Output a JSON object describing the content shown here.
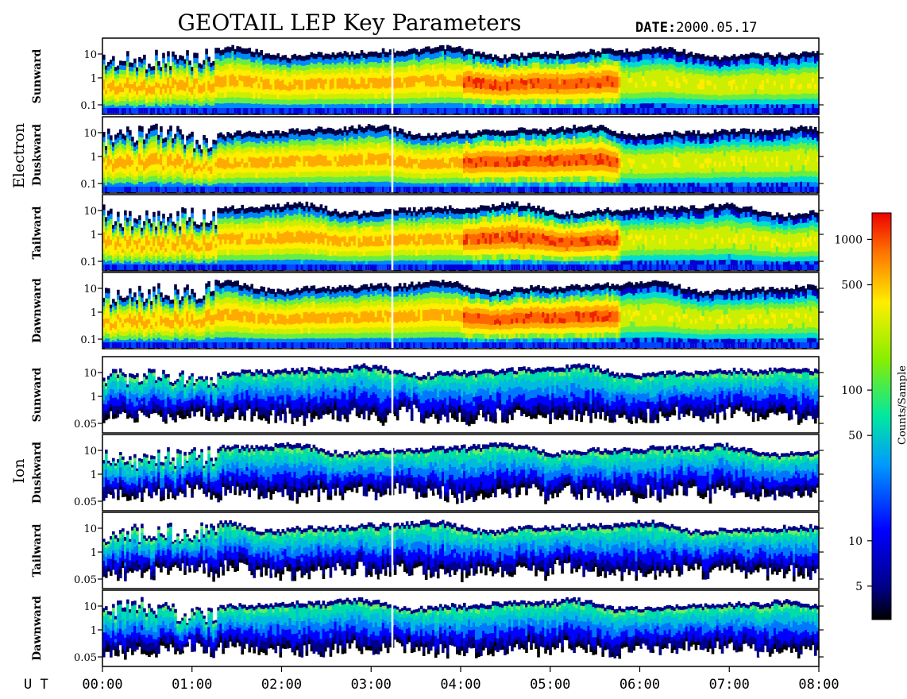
{
  "title": "GEOTAIL LEP Key Parameters",
  "date_label": "DATE:",
  "date_value": "2000.05.17",
  "ut_label": "U T",
  "x_ticks": [
    "00:00",
    "01:00",
    "02:00",
    "03:00",
    "04:00",
    "05:00",
    "06:00",
    "07:00",
    "08:00"
  ],
  "groups": [
    {
      "name": "Electron",
      "panels": [
        "Sunward",
        "Duskward",
        "Tailward",
        "Dawnward"
      ],
      "y_ticks": [
        "10",
        "1",
        "0.1"
      ]
    },
    {
      "name": "Ion",
      "panels": [
        "Sunward",
        "Duskward",
        "Tailward",
        "Dawnward"
      ],
      "y_ticks": [
        "10",
        "1",
        "0.05"
      ]
    }
  ],
  "colorbar": {
    "label": "Counts/Sample",
    "ticks": [
      "1000",
      "500",
      "100",
      "50",
      "10",
      "5"
    ],
    "tick_values": [
      1000,
      500,
      100,
      50,
      10,
      5
    ],
    "range": [
      3,
      1500
    ],
    "scale": "log"
  },
  "chart_data": {
    "type": "heatmap",
    "title": "GEOTAIL LEP Key Parameters",
    "xlabel": "U T",
    "x_range": [
      "00:00",
      "08:00"
    ],
    "y_scale": "log",
    "color_scale": "log",
    "colorbar_label": "Counts/Sample",
    "panels": [
      {
        "group": "Electron",
        "direction": "Sunward",
        "y_ticks": [
          10,
          1,
          0.1
        ]
      },
      {
        "group": "Electron",
        "direction": "Duskward",
        "y_ticks": [
          10,
          1,
          0.1
        ]
      },
      {
        "group": "Electron",
        "direction": "Tailward",
        "y_ticks": [
          10,
          1,
          0.1
        ]
      },
      {
        "group": "Electron",
        "direction": "Dawnward",
        "y_ticks": [
          10,
          1,
          0.1
        ]
      },
      {
        "group": "Ion",
        "direction": "Sunward",
        "y_ticks": [
          10,
          1,
          0.05
        ]
      },
      {
        "group": "Ion",
        "direction": "Duskward",
        "y_ticks": [
          10,
          1,
          0.05
        ]
      },
      {
        "group": "Ion",
        "direction": "Tailward",
        "y_ticks": [
          10,
          1,
          0.05
        ]
      },
      {
        "group": "Ion",
        "direction": "Dawnward",
        "y_ticks": [
          10,
          1,
          0.05
        ]
      }
    ]
  }
}
